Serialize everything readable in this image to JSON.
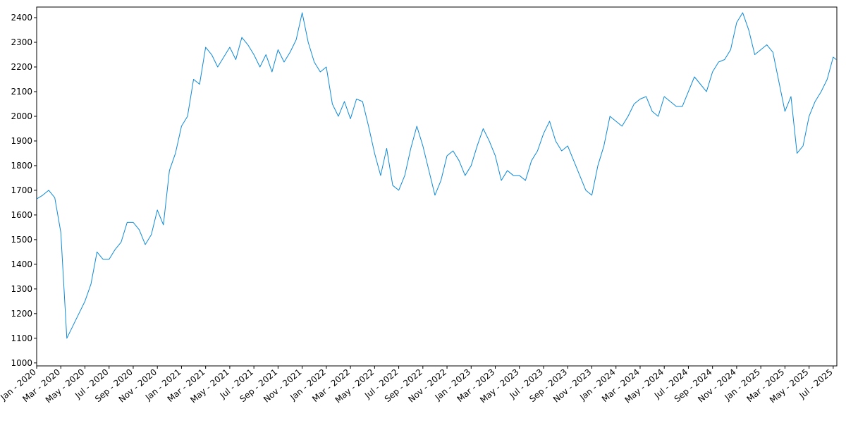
{
  "chart_data": {
    "type": "line",
    "color": "#0f8ad6",
    "x": [
      0,
      0.5,
      1,
      1.5,
      2,
      2.5,
      3,
      3.5,
      4,
      4.5,
      5,
      5.5,
      6,
      6.5,
      7,
      7.5,
      8,
      8.5,
      9,
      9.5,
      10,
      10.5,
      11,
      11.5,
      12,
      12.5,
      13,
      13.5,
      14,
      14.5,
      15,
      15.5,
      16,
      16.5,
      17,
      17.5,
      18,
      18.5,
      19,
      19.5,
      20,
      20.5,
      21,
      21.5,
      22,
      22.5,
      23,
      23.5,
      24,
      24.5,
      25,
      25.5,
      26,
      26.5,
      27,
      27.5,
      28,
      28.5,
      29,
      29.5,
      30,
      30.5,
      31,
      31.5,
      32,
      32.5,
      33,
      33.5,
      34,
      34.5,
      35,
      35.5,
      36,
      36.5,
      37,
      37.5,
      38,
      38.5,
      39,
      39.5,
      40,
      40.5,
      41,
      41.5,
      42,
      42.5,
      43,
      43.5,
      44,
      44.5,
      45,
      45.5,
      46,
      46.5,
      47,
      47.5,
      48,
      48.5,
      49,
      49.5,
      50,
      50.5,
      51,
      51.5,
      52,
      52.5,
      53,
      53.5,
      54,
      54.5,
      55,
      55.5,
      56,
      56.5,
      57,
      57.5,
      58,
      58.5,
      59,
      59.5,
      60,
      60.5,
      61,
      61.5,
      62,
      62.5,
      63,
      63.5,
      64,
      64.5,
      65,
      65.5,
      66,
      66.25
    ],
    "values": [
      1665,
      1680,
      1700,
      1670,
      1530,
      1100,
      1150,
      1200,
      1250,
      1320,
      1450,
      1420,
      1420,
      1460,
      1490,
      1570,
      1570,
      1540,
      1480,
      1520,
      1620,
      1560,
      1780,
      1850,
      1960,
      2000,
      2150,
      2130,
      2280,
      2250,
      2200,
      2240,
      2280,
      2230,
      2320,
      2290,
      2250,
      2200,
      2250,
      2180,
      2270,
      2220,
      2260,
      2310,
      2420,
      2300,
      2220,
      2180,
      2200,
      2050,
      2000,
      2060,
      1990,
      2070,
      2060,
      1960,
      1850,
      1760,
      1870,
      1720,
      1700,
      1760,
      1870,
      1960,
      1880,
      1780,
      1680,
      1740,
      1840,
      1860,
      1820,
      1760,
      1800,
      1880,
      1950,
      1900,
      1840,
      1740,
      1780,
      1760,
      1760,
      1740,
      1820,
      1860,
      1930,
      1980,
      1900,
      1860,
      1880,
      1820,
      1760,
      1700,
      1680,
      1800,
      1880,
      2000,
      1980,
      1960,
      2000,
      2050,
      2070,
      2080,
      2020,
      2000,
      2080,
      2060,
      2040,
      2040,
      2100,
      2160,
      2130,
      2100,
      2180,
      2220,
      2230,
      2270,
      2380,
      2420,
      2350,
      2250,
      2270,
      2290,
      2260,
      2140,
      2020,
      2080,
      1850,
      1880,
      2000,
      2060,
      2100,
      2150,
      2240,
      2230
    ],
    "xlim": [
      0,
      66.3
    ],
    "xticks": [
      {
        "value": 0,
        "label": "Jan - 2020"
      },
      {
        "value": 2,
        "label": "Mar - 2020"
      },
      {
        "value": 4,
        "label": "May - 2020"
      },
      {
        "value": 6,
        "label": "Jul - 2020"
      },
      {
        "value": 8,
        "label": "Sep - 2020"
      },
      {
        "value": 10,
        "label": "Nov - 2020"
      },
      {
        "value": 12,
        "label": "Jan - 2021"
      },
      {
        "value": 14,
        "label": "Mar - 2021"
      },
      {
        "value": 16,
        "label": "May - 2021"
      },
      {
        "value": 18,
        "label": "Jul - 2021"
      },
      {
        "value": 20,
        "label": "Sep - 2021"
      },
      {
        "value": 22,
        "label": "Nov - 2021"
      },
      {
        "value": 24,
        "label": "Jan - 2022"
      },
      {
        "value": 26,
        "label": "Mar - 2022"
      },
      {
        "value": 28,
        "label": "May - 2022"
      },
      {
        "value": 30,
        "label": "Jul - 2022"
      },
      {
        "value": 32,
        "label": "Sep - 2022"
      },
      {
        "value": 34,
        "label": "Nov - 2022"
      },
      {
        "value": 36,
        "label": "Jan - 2023"
      },
      {
        "value": 38,
        "label": "Mar - 2023"
      },
      {
        "value": 40,
        "label": "May - 2023"
      },
      {
        "value": 42,
        "label": "Jul - 2023"
      },
      {
        "value": 44,
        "label": "Sep - 2023"
      },
      {
        "value": 46,
        "label": "Nov - 2023"
      },
      {
        "value": 48,
        "label": "Jan - 2024"
      },
      {
        "value": 50,
        "label": "Mar - 2024"
      },
      {
        "value": 52,
        "label": "May - 2024"
      },
      {
        "value": 54,
        "label": "Jul - 2024"
      },
      {
        "value": 56,
        "label": "Sep - 2024"
      },
      {
        "value": 58,
        "label": "Nov - 2024"
      },
      {
        "value": 60,
        "label": "Jan - 2025"
      },
      {
        "value": 62,
        "label": "Mar - 2025"
      },
      {
        "value": 64,
        "label": "May - 2025"
      },
      {
        "value": 66,
        "label": "Jul - 2025"
      }
    ],
    "ylim": [
      988,
      2443
    ],
    "yticks": [
      1000,
      1100,
      1200,
      1300,
      1400,
      1500,
      1600,
      1700,
      1800,
      1900,
      2000,
      2100,
      2200,
      2300,
      2400
    ]
  }
}
